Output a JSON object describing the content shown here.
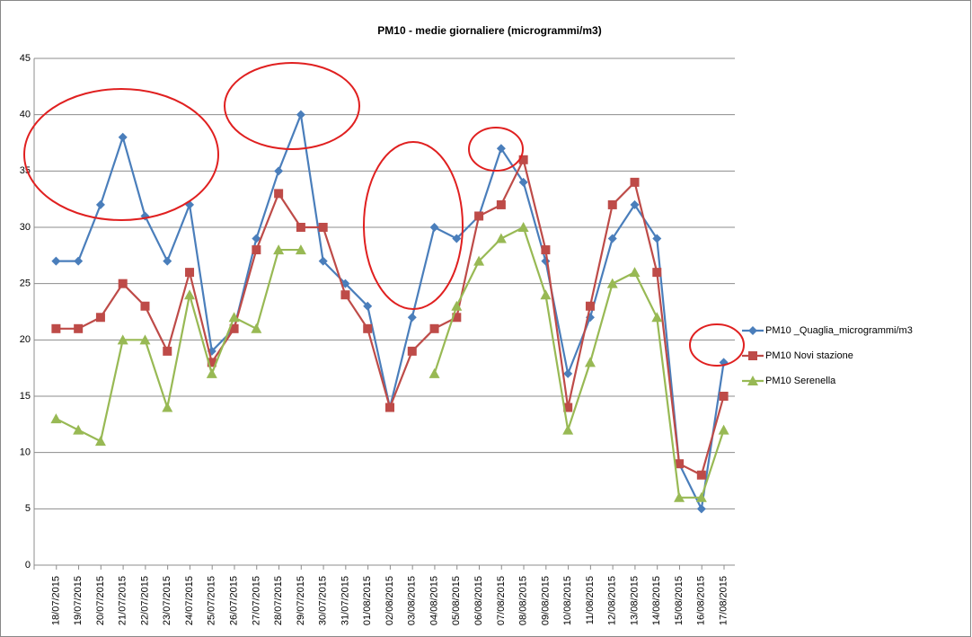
{
  "chart_data": {
    "type": "line",
    "title": "PM10 - medie giornaliere (microgrammi/m3)",
    "categories": [
      "18/07/2015",
      "19/07/2015",
      "20/07/2015",
      "21/07/2015",
      "22/07/2015",
      "23/07/2015",
      "24/07/2015",
      "25/07/2015",
      "26/07/2015",
      "27/07/2015",
      "28/07/2015",
      "29/07/2015",
      "30/07/2015",
      "31/07/2015",
      "01/08/2015",
      "02/08/2015",
      "03/08/2015",
      "04/08/2015",
      "05/08/2015",
      "06/08/2015",
      "07/08/2015",
      "08/08/2015",
      "09/08/2015",
      "10/08/2015",
      "11/08/2015",
      "12/08/2015",
      "13/08/2015",
      "14/08/2015",
      "15/08/2015",
      "16/08/2015",
      "17/08/2015"
    ],
    "series": [
      {
        "name": "PM10 _Quaglia_microgrammi/m3",
        "color": "#4a7ebb",
        "marker": "diamond",
        "values": [
          27,
          27,
          32,
          38,
          31,
          27,
          32,
          19,
          21,
          29,
          35,
          40,
          27,
          25,
          23,
          14,
          22,
          30,
          29,
          31,
          37,
          34,
          27,
          17,
          22,
          29,
          32,
          29,
          9,
          5,
          18
        ]
      },
      {
        "name": "PM10  Novi  stazione",
        "color": "#be4b48",
        "marker": "square",
        "values": [
          21,
          21,
          22,
          25,
          23,
          19,
          26,
          18,
          21,
          28,
          33,
          30,
          30,
          24,
          21,
          14,
          19,
          21,
          22,
          31,
          32,
          36,
          28,
          14,
          23,
          32,
          34,
          26,
          9,
          8,
          15
        ]
      },
      {
        "name": "PM10  Serenella",
        "color": "#98b954",
        "marker": "triangle",
        "values": [
          13,
          12,
          11,
          20,
          20,
          14,
          24,
          17,
          22,
          21,
          28,
          28,
          null,
          null,
          null,
          null,
          null,
          17,
          23,
          27,
          29,
          30,
          24,
          12,
          18,
          25,
          26,
          22,
          6,
          6,
          12
        ]
      }
    ],
    "ylim": [
      0,
      45
    ],
    "yticks": [
      0,
      5,
      10,
      15,
      20,
      25,
      30,
      35,
      40,
      45
    ],
    "grid": true,
    "legend": "right"
  }
}
